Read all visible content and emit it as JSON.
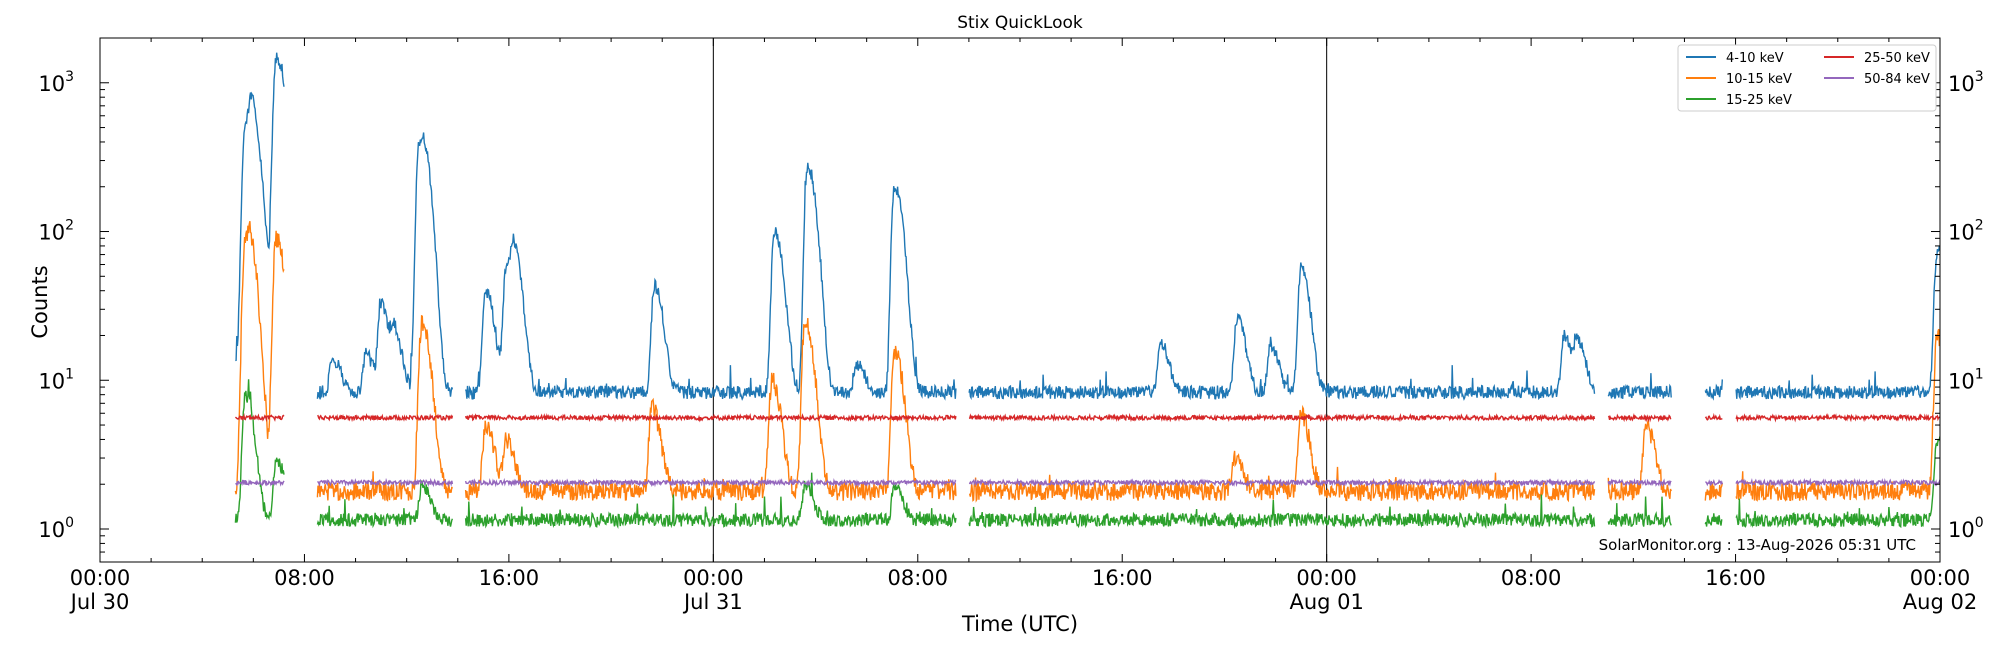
{
  "chart_data": {
    "type": "line",
    "title": "Stix QuickLook",
    "xlabel": "Time (UTC)",
    "ylabel": "Counts",
    "yscale": "log",
    "ylim": [
      0.6,
      2000
    ],
    "xlim_hours": [
      0,
      72
    ],
    "xlim_dates": [
      "2026-07-30T00:00",
      "2026-08-02T00:00"
    ],
    "x_ticks": [
      {
        "hour": 0,
        "line1": "00:00",
        "line2": "Jul 30"
      },
      {
        "hour": 8,
        "line1": "08:00",
        "line2": ""
      },
      {
        "hour": 16,
        "line1": "16:00",
        "line2": ""
      },
      {
        "hour": 24,
        "line1": "00:00",
        "line2": "Jul 31"
      },
      {
        "hour": 32,
        "line1": "08:00",
        "line2": ""
      },
      {
        "hour": 40,
        "line1": "16:00",
        "line2": ""
      },
      {
        "hour": 48,
        "line1": "00:00",
        "line2": "Aug 01"
      },
      {
        "hour": 56,
        "line1": "08:00",
        "line2": ""
      },
      {
        "hour": 64,
        "line1": "16:00",
        "line2": ""
      },
      {
        "hour": 72,
        "line1": "00:00",
        "line2": "Aug 02"
      }
    ],
    "y_ticks": [
      {
        "value": 1,
        "base": "10",
        "exp": "0"
      },
      {
        "value": 10,
        "base": "10",
        "exp": "1"
      },
      {
        "value": 100,
        "base": "10",
        "exp": "2"
      },
      {
        "value": 1000,
        "base": "10",
        "exp": "3"
      }
    ],
    "day_boundaries_hours": [
      24,
      48
    ],
    "legend": {
      "placement": "top-right",
      "columns": 2
    },
    "grid": false,
    "data_gaps_hours": [
      [
        7.2,
        8.5
      ],
      [
        13.8,
        14.3
      ],
      [
        33.5,
        34.0
      ],
      [
        58.5,
        59.0
      ],
      [
        61.5,
        62.8
      ],
      [
        63.5,
        64.0
      ]
    ],
    "series": [
      {
        "name": "4-10 keV",
        "color": "#1f77b4",
        "baseline": 8.3,
        "peaks": [
          [
            5.4,
            15
          ],
          [
            5.7,
            530
          ],
          [
            5.95,
            450
          ],
          [
            6.4,
            35
          ],
          [
            6.9,
            1450
          ],
          [
            7.0,
            35
          ],
          [
            9.1,
            14
          ],
          [
            10.4,
            15
          ],
          [
            11.0,
            32
          ],
          [
            11.5,
            20
          ],
          [
            12.5,
            400
          ],
          [
            12.7,
            120
          ],
          [
            15.1,
            40
          ],
          [
            15.9,
            58
          ],
          [
            16.2,
            60
          ],
          [
            21.7,
            43
          ],
          [
            26.4,
            100
          ],
          [
            27.7,
            270
          ],
          [
            29.6,
            13
          ],
          [
            31.1,
            200
          ],
          [
            47.0,
            57
          ],
          [
            44.5,
            26
          ],
          [
            41.5,
            18
          ],
          [
            45.8,
            17
          ],
          [
            57.3,
            20
          ],
          [
            57.8,
            18
          ],
          [
            71.9,
            75
          ]
        ]
      },
      {
        "name": "10-15 keV",
        "color": "#ff7f0e",
        "baseline": 1.8,
        "peaks": [
          [
            5.7,
            90
          ],
          [
            5.9,
            30
          ],
          [
            6.9,
            90
          ],
          [
            12.6,
            25
          ],
          [
            15.1,
            5
          ],
          [
            15.9,
            4
          ],
          [
            21.6,
            6.5
          ],
          [
            26.3,
            10
          ],
          [
            27.6,
            25
          ],
          [
            31.1,
            16
          ],
          [
            44.4,
            3
          ],
          [
            47.0,
            6
          ],
          [
            60.5,
            5
          ],
          [
            71.9,
            20
          ]
        ]
      },
      {
        "name": "15-25 keV",
        "color": "#2ca02c",
        "baseline": 1.15,
        "peaks": [
          [
            5.7,
            8
          ],
          [
            6.9,
            3
          ],
          [
            12.6,
            2
          ],
          [
            27.6,
            2
          ],
          [
            31.1,
            2
          ],
          [
            71.9,
            4
          ]
        ]
      },
      {
        "name": "25-50 keV",
        "color": "#d62728",
        "baseline": 5.6,
        "peaks": []
      },
      {
        "name": "50-84 keV",
        "color": "#9467bd",
        "baseline": 2.05,
        "peaks": []
      }
    ],
    "annotation": "SolarMonitor.org : 13-Aug-2026 05:31 UTC"
  }
}
